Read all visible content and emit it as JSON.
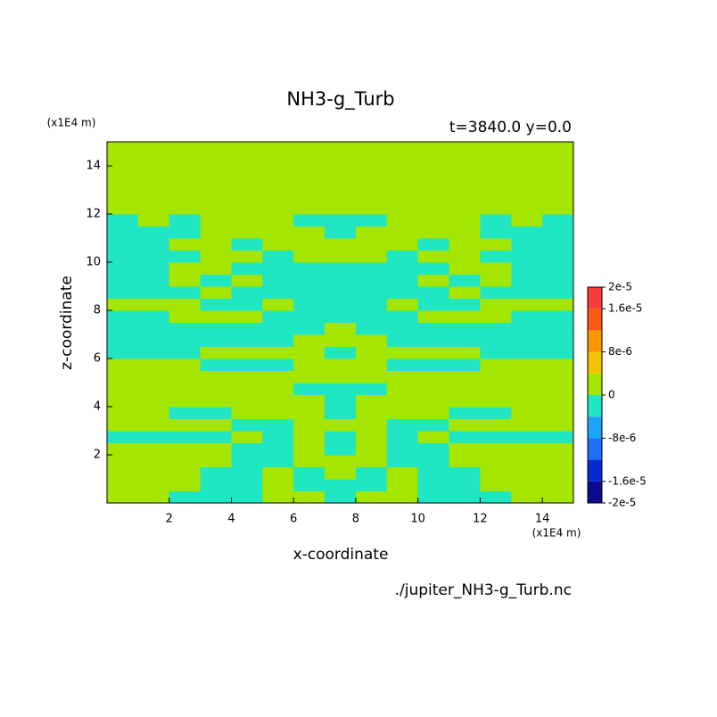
{
  "chart_data": {
    "type": "contour",
    "title": "NH3-g_Turb",
    "subtitle": "t=3840.0 y=0.0",
    "x_label": "x-coordinate",
    "y_label": "z-coordinate",
    "x_unit": "(x1E4 m)",
    "y_unit": "(x1E4 m)",
    "source": "./jupiter_NH3-g_Turb.nc",
    "xlim": [
      0,
      15
    ],
    "ylim": [
      0,
      15
    ],
    "xticks": [
      2,
      4,
      6,
      8,
      10,
      12,
      14
    ],
    "yticks": [
      2,
      4,
      6,
      8,
      10,
      12,
      14
    ],
    "x": [
      0.5,
      1.5,
      2.5,
      3.5,
      4.5,
      5.5,
      6.5,
      7.5,
      8.5,
      9.5,
      10.5,
      11.5,
      12.5,
      13.5,
      14.5
    ],
    "z": [
      0.25,
      0.75,
      1.25,
      1.75,
      2.25,
      2.75,
      3.25,
      3.75,
      4.25,
      4.75,
      5.25,
      5.75,
      6.25,
      6.75,
      7.25,
      7.75,
      8.25,
      8.75,
      9.25,
      9.75,
      10.25,
      10.75,
      11.25,
      11.75,
      12.25,
      12.75,
      13.25,
      13.75,
      14.25,
      14.75
    ],
    "levels": [
      -2e-05,
      -1.6e-05,
      -1.2e-05,
      -8e-06,
      -4e-06,
      0,
      4e-06,
      8e-06,
      1.2e-05,
      1.6e-05,
      2e-05
    ],
    "colors": [
      "#0a0a8c",
      "#0a28d2",
      "#1e6efa",
      "#1ea5fa",
      "#20e6c3",
      "#a5e600",
      "#f5c300",
      "#fa9600",
      "#fa5a14",
      "#fa3c3c"
    ],
    "colorbar_ticks": [
      {
        "value": 2e-05,
        "label": "2e-5"
      },
      {
        "value": 1.6e-05,
        "label": "1.6e-5"
      },
      {
        "value": 8e-06,
        "label": "8e-6"
      },
      0,
      {
        "value": -8e-06,
        "label": "-8e-6"
      },
      {
        "value": -1.6e-05,
        "label": "-1.6e-5"
      },
      {
        "value": -2e-05,
        "label": "-2e-5"
      }
    ],
    "values": [
      [
        2e-06,
        2e-06,
        -2e-06,
        -2e-06,
        -2e-06,
        2e-06,
        2e-06,
        -2e-06,
        2e-06,
        2e-06,
        -2e-06,
        -2e-06,
        -2e-06,
        2e-06,
        2e-06
      ],
      [
        2e-06,
        2e-06,
        2e-06,
        -2e-06,
        -2e-06,
        2e-06,
        -2e-06,
        -2e-06,
        -2e-06,
        2e-06,
        -2e-06,
        -2e-06,
        2e-06,
        2e-06,
        2e-06
      ],
      [
        2e-06,
        2e-06,
        2e-06,
        -2e-06,
        -2e-06,
        2e-06,
        -2e-06,
        2e-06,
        -2e-06,
        2e-06,
        -2e-06,
        -2e-06,
        2e-06,
        2e-06,
        2e-06
      ],
      [
        2e-06,
        2e-06,
        2e-06,
        2e-06,
        -2e-06,
        -2e-06,
        2e-06,
        2e-06,
        2e-06,
        -2e-06,
        -2e-06,
        2e-06,
        2e-06,
        2e-06,
        2e-06
      ],
      [
        2e-06,
        2e-06,
        2e-06,
        2e-06,
        -2e-06,
        -2e-06,
        2e-06,
        -2e-06,
        2e-06,
        -2e-06,
        -2e-06,
        2e-06,
        2e-06,
        2e-06,
        2e-06
      ],
      [
        -2e-06,
        -2e-06,
        -2e-06,
        -2e-06,
        2e-06,
        -2e-06,
        2e-06,
        -2e-06,
        2e-06,
        -2e-06,
        2e-06,
        -2e-06,
        -2e-06,
        -2e-06,
        -2e-06
      ],
      [
        2e-06,
        2e-06,
        2e-06,
        2e-06,
        -2e-06,
        -2e-06,
        2e-06,
        2e-06,
        2e-06,
        -2e-06,
        -2e-06,
        2e-06,
        2e-06,
        2e-06,
        2e-06
      ],
      [
        2e-06,
        2e-06,
        -2e-06,
        -2e-06,
        2e-06,
        2e-06,
        2e-06,
        -2e-06,
        2e-06,
        2e-06,
        2e-06,
        -2e-06,
        -2e-06,
        2e-06,
        2e-06
      ],
      [
        2e-06,
        2e-06,
        2e-06,
        2e-06,
        2e-06,
        2e-06,
        2e-06,
        -2e-06,
        2e-06,
        2e-06,
        2e-06,
        2e-06,
        2e-06,
        2e-06,
        2e-06
      ],
      [
        2e-06,
        2e-06,
        2e-06,
        2e-06,
        2e-06,
        2e-06,
        -2e-06,
        -2e-06,
        -2e-06,
        2e-06,
        2e-06,
        2e-06,
        2e-06,
        2e-06,
        2e-06
      ],
      [
        2e-06,
        2e-06,
        2e-06,
        2e-06,
        2e-06,
        2e-06,
        2e-06,
        2e-06,
        2e-06,
        2e-06,
        2e-06,
        2e-06,
        2e-06,
        2e-06,
        2e-06
      ],
      [
        2e-06,
        2e-06,
        2e-06,
        -2e-06,
        -2e-06,
        -2e-06,
        2e-06,
        2e-06,
        2e-06,
        -2e-06,
        -2e-06,
        -2e-06,
        2e-06,
        2e-06,
        2e-06
      ],
      [
        -2e-06,
        -2e-06,
        -2e-06,
        2e-06,
        2e-06,
        2e-06,
        2e-06,
        -2e-06,
        2e-06,
        2e-06,
        2e-06,
        2e-06,
        -2e-06,
        -2e-06,
        -2e-06
      ],
      [
        -2e-06,
        -2e-06,
        -2e-06,
        -2e-06,
        -2e-06,
        -2e-06,
        2e-06,
        2e-06,
        2e-06,
        -2e-06,
        -2e-06,
        -2e-06,
        -2e-06,
        -2e-06,
        -2e-06
      ],
      [
        -2e-06,
        -2e-06,
        -2e-06,
        -2e-06,
        -2e-06,
        -2e-06,
        -2e-06,
        2e-06,
        -2e-06,
        -2e-06,
        -2e-06,
        -2e-06,
        -2e-06,
        -2e-06,
        -2e-06
      ],
      [
        -2e-06,
        -2e-06,
        2e-06,
        2e-06,
        2e-06,
        -2e-06,
        -2e-06,
        -2e-06,
        -2e-06,
        -2e-06,
        2e-06,
        2e-06,
        2e-06,
        -2e-06,
        -2e-06
      ],
      [
        2e-06,
        2e-06,
        2e-06,
        -2e-06,
        -2e-06,
        2e-06,
        -2e-06,
        -2e-06,
        -2e-06,
        2e-06,
        -2e-06,
        -2e-06,
        2e-06,
        2e-06,
        2e-06
      ],
      [
        -2e-06,
        -2e-06,
        -2e-06,
        2e-06,
        -2e-06,
        -2e-06,
        -2e-06,
        -2e-06,
        -2e-06,
        -2e-06,
        -2e-06,
        2e-06,
        -2e-06,
        -2e-06,
        -2e-06
      ],
      [
        -2e-06,
        -2e-06,
        2e-06,
        -2e-06,
        2e-06,
        -2e-06,
        -2e-06,
        -2e-06,
        -2e-06,
        -2e-06,
        2e-06,
        -2e-06,
        2e-06,
        -2e-06,
        -2e-06
      ],
      [
        -2e-06,
        -2e-06,
        2e-06,
        2e-06,
        -2e-06,
        -2e-06,
        -2e-06,
        -2e-06,
        -2e-06,
        -2e-06,
        -2e-06,
        2e-06,
        2e-06,
        -2e-06,
        -2e-06
      ],
      [
        -2e-06,
        -2e-06,
        -2e-06,
        2e-06,
        2e-06,
        -2e-06,
        2e-06,
        2e-06,
        2e-06,
        -2e-06,
        2e-06,
        2e-06,
        -2e-06,
        -2e-06,
        -2e-06
      ],
      [
        -2e-06,
        -2e-06,
        2e-06,
        2e-06,
        -2e-06,
        2e-06,
        2e-06,
        2e-06,
        2e-06,
        2e-06,
        -2e-06,
        2e-06,
        2e-06,
        -2e-06,
        -2e-06
      ],
      [
        -2e-06,
        -2e-06,
        -2e-06,
        2e-06,
        2e-06,
        2e-06,
        2e-06,
        -2e-06,
        2e-06,
        2e-06,
        2e-06,
        2e-06,
        -2e-06,
        -2e-06,
        -2e-06
      ],
      [
        -2e-06,
        2e-06,
        -2e-06,
        2e-06,
        2e-06,
        2e-06,
        -2e-06,
        -2e-06,
        -2e-06,
        2e-06,
        2e-06,
        2e-06,
        -2e-06,
        2e-06,
        -2e-06
      ],
      [
        2e-06,
        2e-06,
        2e-06,
        2e-06,
        2e-06,
        2e-06,
        2e-06,
        2e-06,
        2e-06,
        2e-06,
        2e-06,
        2e-06,
        2e-06,
        2e-06,
        2e-06
      ],
      [
        2e-06,
        2e-06,
        2e-06,
        2e-06,
        2e-06,
        2e-06,
        2e-06,
        2e-06,
        2e-06,
        2e-06,
        2e-06,
        2e-06,
        2e-06,
        2e-06,
        2e-06
      ],
      [
        2e-06,
        2e-06,
        2e-06,
        2e-06,
        2e-06,
        2e-06,
        2e-06,
        2e-06,
        2e-06,
        2e-06,
        2e-06,
        2e-06,
        2e-06,
        2e-06,
        2e-06
      ],
      [
        2e-06,
        2e-06,
        2e-06,
        2e-06,
        2e-06,
        2e-06,
        2e-06,
        2e-06,
        2e-06,
        2e-06,
        2e-06,
        2e-06,
        2e-06,
        2e-06,
        2e-06
      ],
      [
        2e-06,
        2e-06,
        2e-06,
        2e-06,
        2e-06,
        2e-06,
        2e-06,
        2e-06,
        2e-06,
        2e-06,
        2e-06,
        2e-06,
        2e-06,
        2e-06,
        2e-06
      ],
      [
        2e-06,
        2e-06,
        2e-06,
        2e-06,
        2e-06,
        2e-06,
        2e-06,
        2e-06,
        2e-06,
        2e-06,
        2e-06,
        2e-06,
        2e-06,
        2e-06,
        2e-06
      ]
    ]
  }
}
